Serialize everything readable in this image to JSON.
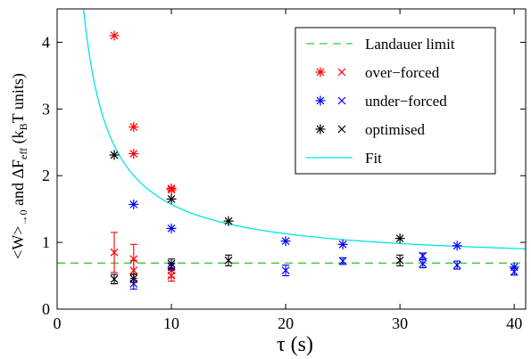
{
  "chart_data": {
    "type": "scatter",
    "title": "",
    "xlabel": "τ (s)",
    "ylabel_parts": [
      "<W>",
      "→0",
      " and ΔF",
      "eff",
      " (k",
      "B",
      "T units)"
    ],
    "xlim": [
      0,
      41
    ],
    "ylim": [
      0,
      4.5
    ],
    "xticks": [
      0,
      10,
      20,
      30,
      40
    ],
    "yticks": [
      0,
      1,
      2,
      3,
      4
    ],
    "grid": false,
    "legend_position": "top-right",
    "landauer_limit": {
      "name": "Landauer limit",
      "y": 0.69,
      "color": "#33cc33"
    },
    "fit": {
      "name": "Fit",
      "color": "#00e5e5",
      "a": 0.69,
      "b": 8.8,
      "x_range": [
        1.6,
        41
      ]
    },
    "series": [
      {
        "name": "over−forced",
        "color": "#ff0000",
        "asterisk_points": [
          {
            "x": 5,
            "y": 4.1
          },
          {
            "x": 6.7,
            "y": 2.73
          },
          {
            "x": 6.7,
            "y": 2.33
          },
          {
            "x": 10,
            "y": 1.81
          },
          {
            "x": 10,
            "y": 1.79
          }
        ],
        "cross_points": [
          {
            "x": 5,
            "y": 0.85,
            "err": 0.3
          },
          {
            "x": 6.7,
            "y": 0.75,
            "err": 0.22
          },
          {
            "x": 6.7,
            "y": 0.58,
            "err": 0.15
          },
          {
            "x": 10,
            "y": 0.58,
            "err": 0.1
          },
          {
            "x": 10,
            "y": 0.5,
            "err": 0.08
          }
        ]
      },
      {
        "name": "under−forced",
        "color": "#0000ff",
        "asterisk_points": [
          {
            "x": 6.7,
            "y": 1.57
          },
          {
            "x": 10,
            "y": 1.21
          },
          {
            "x": 20,
            "y": 1.02
          },
          {
            "x": 25,
            "y": 0.97
          },
          {
            "x": 35,
            "y": 0.95
          },
          {
            "x": 40,
            "y": 0.63
          }
        ],
        "cross_points": [
          {
            "x": 6.7,
            "y": 0.38,
            "err": 0.08
          },
          {
            "x": 10,
            "y": 0.64,
            "err": 0.05
          },
          {
            "x": 20,
            "y": 0.58,
            "err": 0.08
          },
          {
            "x": 25,
            "y": 0.72,
            "err": 0.05
          },
          {
            "x": 32,
            "y": 0.68,
            "err": 0.06
          },
          {
            "x": 32,
            "y": 0.8,
            "err": 0.04
          },
          {
            "x": 35,
            "y": 0.66,
            "err": 0.06
          },
          {
            "x": 40,
            "y": 0.56,
            "err": 0.05
          }
        ]
      },
      {
        "name": "optimised",
        "color": "#000000",
        "asterisk_points": [
          {
            "x": 5,
            "y": 2.31
          },
          {
            "x": 10,
            "y": 1.65
          },
          {
            "x": 15,
            "y": 1.32
          },
          {
            "x": 30,
            "y": 1.06
          }
        ],
        "cross_points": [
          {
            "x": 5,
            "y": 0.45,
            "err": 0.07
          },
          {
            "x": 6.7,
            "y": 0.46,
            "err": 0.06
          },
          {
            "x": 10,
            "y": 0.68,
            "err": 0.07
          },
          {
            "x": 15,
            "y": 0.73,
            "err": 0.08
          },
          {
            "x": 30,
            "y": 0.73,
            "err": 0.08
          }
        ]
      }
    ]
  }
}
